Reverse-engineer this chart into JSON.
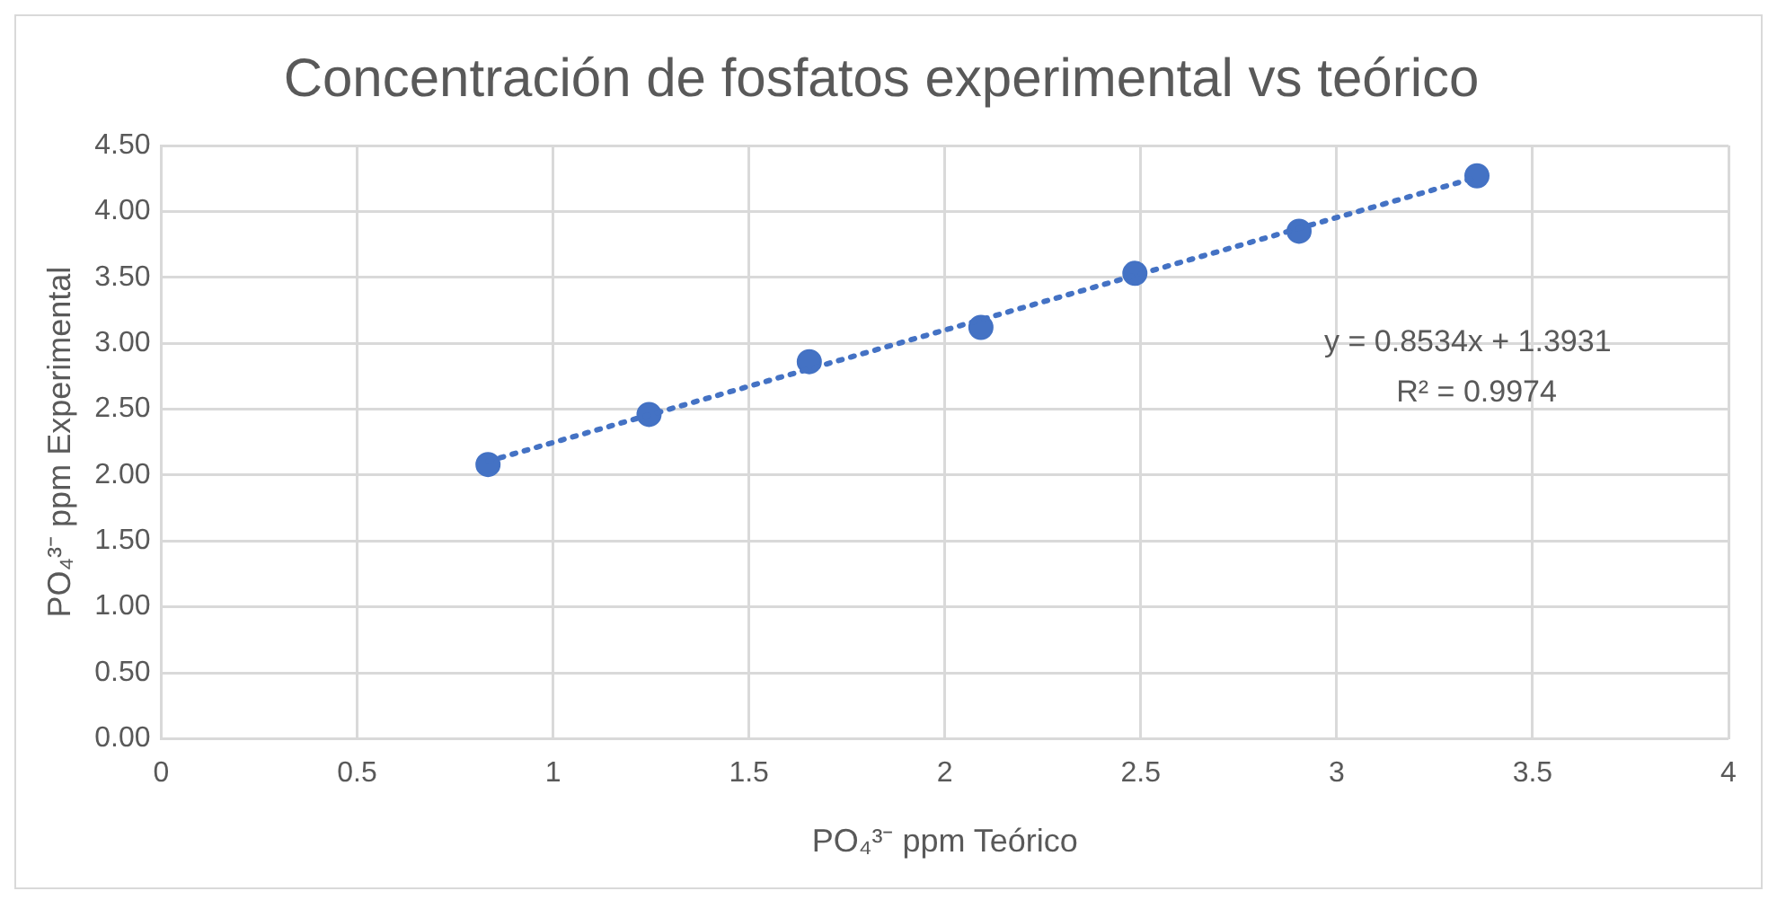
{
  "chart_data": {
    "type": "scatter",
    "title": "Concentración de fosfatos experimental vs teórico",
    "xlabel": "PO₄³⁻ ppm Teórico",
    "ylabel": "PO₄³⁻ ppm Experimental",
    "series": [
      {
        "color": "#4472c4",
        "x": [
          0.834,
          1.245,
          1.654,
          2.092,
          2.485,
          2.904,
          3.358
        ],
        "values": [
          2.08,
          2.46,
          2.86,
          3.12,
          3.53,
          3.85,
          4.27
        ]
      },
      {
        "type": "line",
        "color": "#4472c4",
        "line_style": "dotted",
        "marker": "none",
        "x": [
          0.834,
          3.358
        ],
        "values": [
          2.105,
          4.259
        ]
      }
    ],
    "xlim": [
      0,
      4
    ],
    "xticks": [
      0,
      0.5,
      1,
      1.5,
      2,
      2.5,
      3,
      3.5,
      4
    ],
    "ylim": [
      0,
      4.5
    ],
    "yticks": [
      {
        "value": 0,
        "label": "0.00"
      },
      {
        "value": 0.5,
        "label": "0.50"
      },
      {
        "value": 1,
        "label": "1.00"
      },
      {
        "value": 1.5,
        "label": "1.50"
      },
      {
        "value": 2,
        "label": "2.00"
      },
      {
        "value": 2.5,
        "label": "2.50"
      },
      {
        "value": 3,
        "label": "3.00"
      },
      {
        "value": 3.5,
        "label": "3.50"
      },
      {
        "value": 4,
        "label": "4.00"
      },
      {
        "value": 4.5,
        "label": "4.50"
      }
    ],
    "annotations": [
      "y = 0.8534x + 1.3931",
      "R² = 0.9974"
    ],
    "grid": true,
    "legend": false,
    "marker": "circle"
  }
}
